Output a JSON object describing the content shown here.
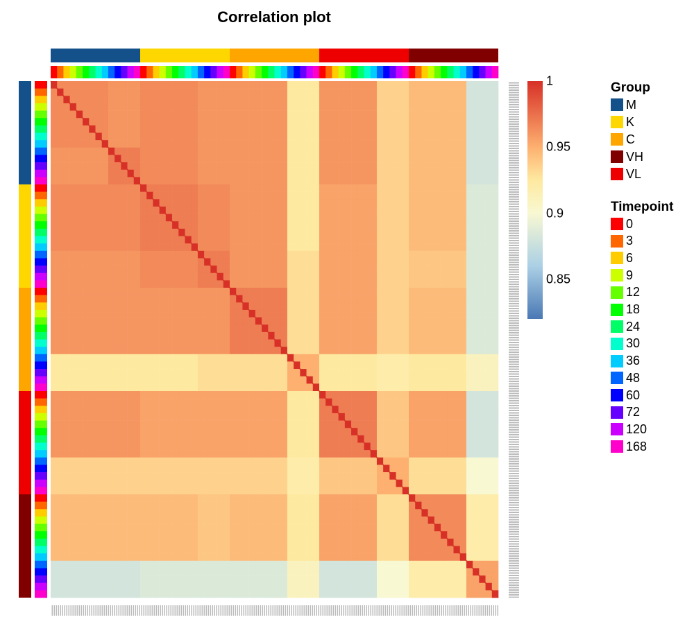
{
  "chart_data": {
    "type": "heatmap",
    "title": "Correlation plot",
    "color_scale": {
      "min": 0.82,
      "max": 1,
      "ticks": [
        1,
        0.95,
        0.9,
        0.85
      ],
      "tick_labels": [
        "1",
        "0.95",
        "0.9",
        "0.85"
      ],
      "stops": [
        [
          0.82,
          "#4a78b4"
        ],
        [
          0.86,
          "#abd0e5"
        ],
        [
          0.9,
          "#f8f8d2"
        ],
        [
          0.925,
          "#fee9a0"
        ],
        [
          0.95,
          "#fdb070"
        ],
        [
          1,
          "#d73027"
        ]
      ]
    },
    "group_order": [
      "M",
      "K",
      "C",
      "VL",
      "VH"
    ],
    "groups": [
      {
        "name": "M",
        "color": "#145089"
      },
      {
        "name": "K",
        "color": "#ffd700"
      },
      {
        "name": "C",
        "color": "#ffa500"
      },
      {
        "name": "VH",
        "color": "#800000"
      },
      {
        "name": "VL",
        "color": "#ee0000"
      }
    ],
    "group_legend_title": "Group",
    "timepoint_legend_title": "Timepoint",
    "timepoints": [
      {
        "name": "0",
        "color": "#ff0000"
      },
      {
        "name": "3",
        "color": "#ff6600"
      },
      {
        "name": "6",
        "color": "#ffcc00"
      },
      {
        "name": "9",
        "color": "#ccff00"
      },
      {
        "name": "12",
        "color": "#66ff00"
      },
      {
        "name": "18",
        "color": "#00ff00"
      },
      {
        "name": "24",
        "color": "#00ff66"
      },
      {
        "name": "30",
        "color": "#00ffcc"
      },
      {
        "name": "36",
        "color": "#00ccff"
      },
      {
        "name": "48",
        "color": "#0066ff"
      },
      {
        "name": "60",
        "color": "#0000ff"
      },
      {
        "name": "72",
        "color": "#6600ff"
      },
      {
        "name": "120",
        "color": "#cc00ff"
      },
      {
        "name": "168",
        "color": "#ff00cc"
      }
    ],
    "block_rows": [
      "M 0-36",
      "M 48-168",
      "K 0-36",
      "K 48-168",
      "C 0-36",
      "C 48-168",
      "VL 0-36",
      "VL 48-168",
      "VH 0-36",
      "VH 48-168"
    ],
    "block_mean_correlation": [
      [
        0.965,
        0.96,
        0.965,
        0.96,
        0.96,
        0.925,
        0.96,
        0.935,
        0.945,
        0.88
      ],
      [
        0.96,
        0.97,
        0.965,
        0.96,
        0.96,
        0.925,
        0.96,
        0.935,
        0.945,
        0.88
      ],
      [
        0.965,
        0.965,
        0.97,
        0.965,
        0.96,
        0.925,
        0.955,
        0.935,
        0.945,
        0.885
      ],
      [
        0.96,
        0.96,
        0.965,
        0.97,
        0.96,
        0.93,
        0.955,
        0.935,
        0.94,
        0.885
      ],
      [
        0.96,
        0.96,
        0.96,
        0.96,
        0.97,
        0.93,
        0.955,
        0.935,
        0.945,
        0.885
      ],
      [
        0.925,
        0.925,
        0.925,
        0.93,
        0.93,
        0.95,
        0.925,
        0.92,
        0.925,
        0.91
      ],
      [
        0.96,
        0.96,
        0.955,
        0.955,
        0.955,
        0.925,
        0.97,
        0.94,
        0.955,
        0.88
      ],
      [
        0.935,
        0.935,
        0.935,
        0.935,
        0.935,
        0.92,
        0.94,
        0.95,
        0.93,
        0.9
      ],
      [
        0.945,
        0.945,
        0.945,
        0.94,
        0.945,
        0.925,
        0.955,
        0.93,
        0.965,
        0.92
      ],
      [
        0.88,
        0.88,
        0.885,
        0.885,
        0.885,
        0.91,
        0.88,
        0.9,
        0.92,
        0.955
      ]
    ],
    "diagonal": 1
  }
}
